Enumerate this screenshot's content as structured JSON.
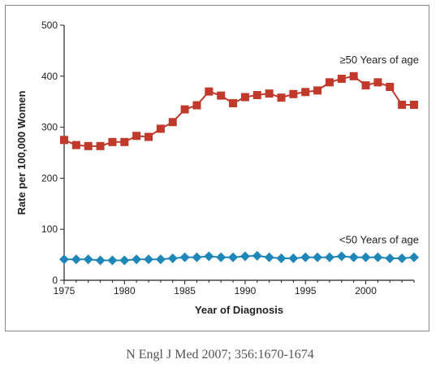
{
  "chart_data": {
    "type": "line",
    "xlabel": "Year of Diagnosis",
    "ylabel": "Rate per 100,000 Women",
    "xlim": [
      1975,
      2004
    ],
    "ylim": [
      0,
      500
    ],
    "xticks": [
      1975,
      1980,
      1985,
      1990,
      1995,
      2000
    ],
    "yticks": [
      0,
      100,
      200,
      300,
      400,
      500
    ],
    "grid": false,
    "x": [
      1975,
      1976,
      1977,
      1978,
      1979,
      1980,
      1981,
      1982,
      1983,
      1984,
      1985,
      1986,
      1987,
      1988,
      1989,
      1990,
      1991,
      1992,
      1993,
      1994,
      1995,
      1996,
      1997,
      1998,
      1999,
      2000,
      2001,
      2002,
      2003,
      2004
    ],
    "series": [
      {
        "name": "≥50 Years of age",
        "color": "#c0392b",
        "marker": "square",
        "values": [
          275,
          265,
          263,
          263,
          271,
          271,
          283,
          281,
          297,
          310,
          335,
          343,
          370,
          362,
          347,
          359,
          363,
          366,
          358,
          365,
          369,
          372,
          388,
          395,
          400,
          382,
          388,
          379,
          344,
          344
        ]
      },
      {
        "name": "<50 Years of age",
        "color": "#1f86b8",
        "marker": "diamond",
        "values": [
          41,
          41,
          41,
          39,
          39,
          39,
          41,
          41,
          41,
          43,
          45,
          45,
          47,
          45,
          45,
          47,
          48,
          45,
          43,
          43,
          45,
          45,
          45,
          47,
          45,
          45,
          45,
          43,
          43,
          45
        ]
      }
    ]
  },
  "citation": "N Engl J Med 2007; 356:1670-1674"
}
